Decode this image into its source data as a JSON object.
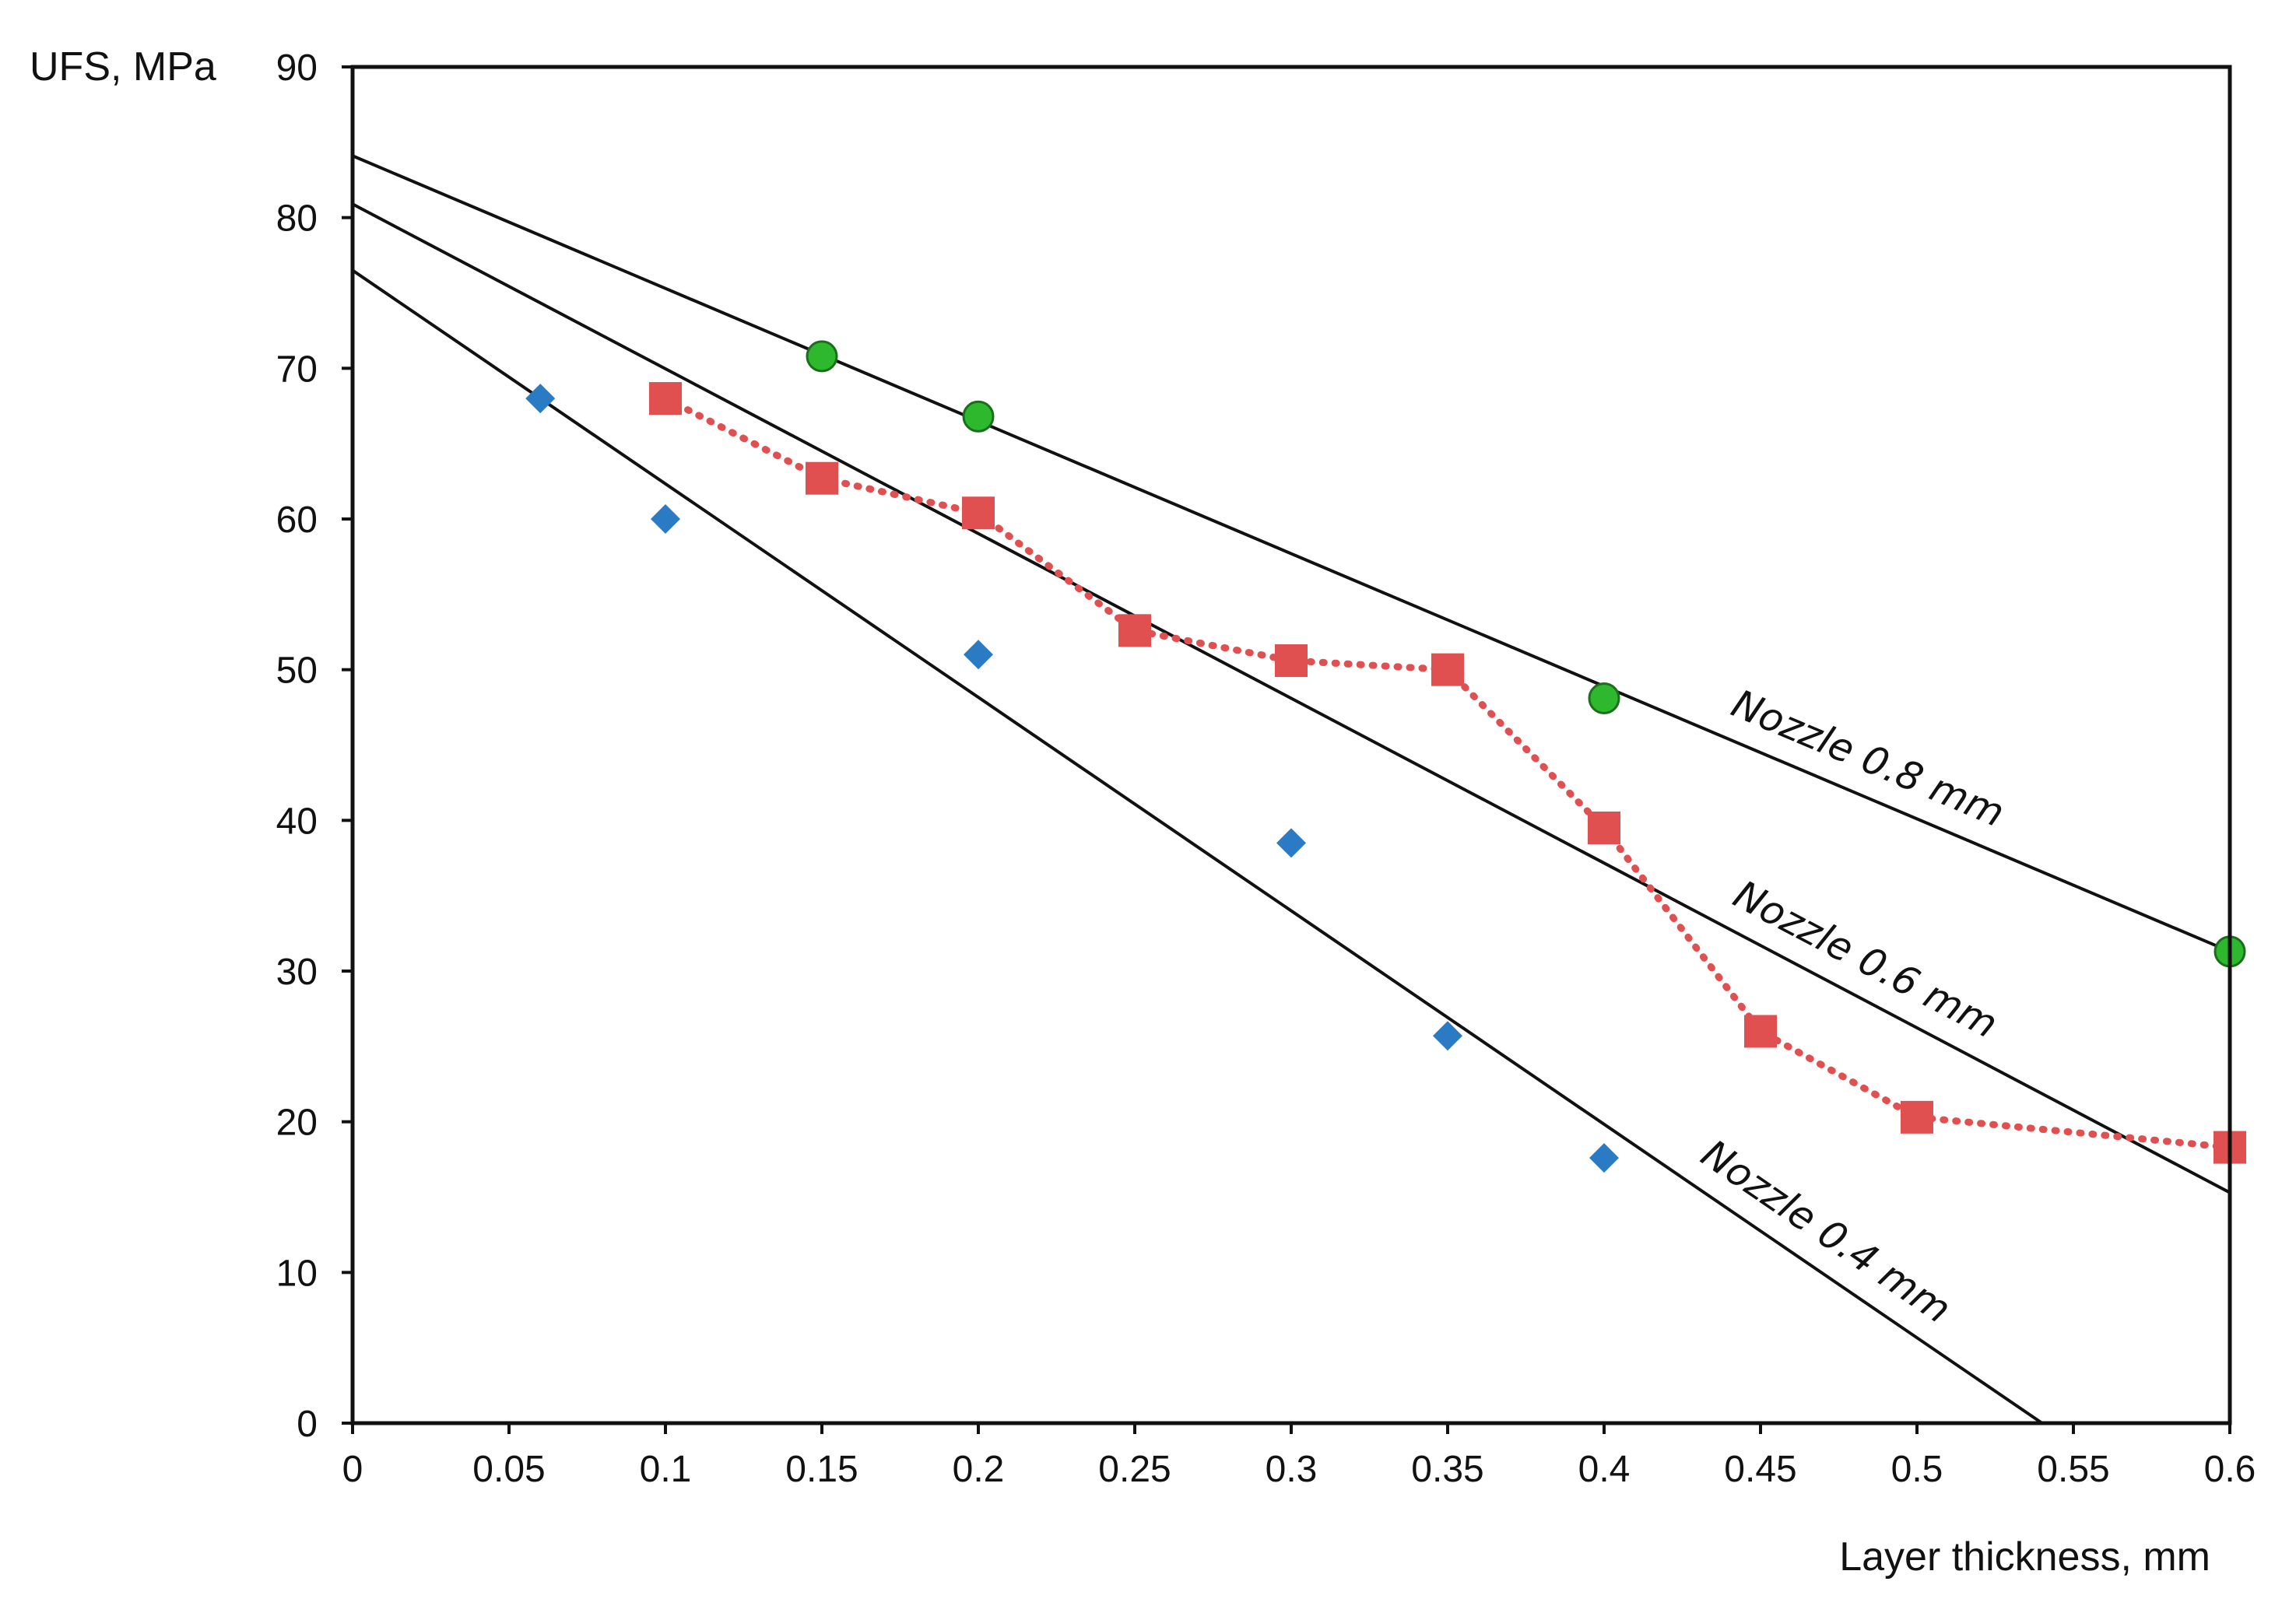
{
  "chart_data": {
    "type": "scatter",
    "xlabel": "Layer thickness, mm",
    "ylabel": "UFS, MPa",
    "xlim": [
      0,
      0.6
    ],
    "ylim": [
      0,
      90
    ],
    "x_ticks": [
      "0",
      "0.05",
      "0.1",
      "0.15",
      "0.2",
      "0.25",
      "0.3",
      "0.35",
      "0.4",
      "0.45",
      "0.5",
      "0.55",
      "0.6"
    ],
    "y_ticks": [
      "0",
      "10",
      "20",
      "30",
      "40",
      "50",
      "60",
      "70",
      "80",
      "90"
    ],
    "grid": false,
    "series": [
      {
        "marker": "diamond",
        "color": "#2b7bc4",
        "points": [
          {
            "x": 0.06,
            "y": 68
          },
          {
            "x": 0.1,
            "y": 60
          },
          {
            "x": 0.2,
            "y": 51
          },
          {
            "x": 0.3,
            "y": 38.5
          },
          {
            "x": 0.35,
            "y": 25.7
          },
          {
            "x": 0.4,
            "y": 17.6
          }
        ]
      },
      {
        "marker": "square",
        "color": "#e05050",
        "connector": "dotted",
        "points": [
          {
            "x": 0.1,
            "y": 68
          },
          {
            "x": 0.15,
            "y": 62.7
          },
          {
            "x": 0.2,
            "y": 60.4
          },
          {
            "x": 0.25,
            "y": 52.6
          },
          {
            "x": 0.3,
            "y": 50.6
          },
          {
            "x": 0.35,
            "y": 50
          },
          {
            "x": 0.4,
            "y": 39.5
          },
          {
            "x": 0.45,
            "y": 26
          },
          {
            "x": 0.5,
            "y": 20.3
          },
          {
            "x": 0.6,
            "y": 18.3
          }
        ]
      },
      {
        "marker": "circle",
        "color": "#2db82d",
        "points": [
          {
            "x": 0.15,
            "y": 70.8
          },
          {
            "x": 0.2,
            "y": 66.8
          },
          {
            "x": 0.4,
            "y": 48.1
          },
          {
            "x": 0.6,
            "y": 31.3
          }
        ]
      }
    ],
    "trend_lines": [
      {
        "label": "Nozzle 0.8 mm",
        "x0": 0,
        "y0": 84.1,
        "x1": 0.6,
        "y1": 31.3
      },
      {
        "label": "Nozzle 0.6 mm",
        "x0": 0,
        "y0": 80.9,
        "x1": 0.6,
        "y1": 15.3
      },
      {
        "label": "Nozzle 0.4 mm",
        "x0": 0,
        "y0": 76.5,
        "x1": 0.54,
        "y1": 0
      }
    ]
  }
}
